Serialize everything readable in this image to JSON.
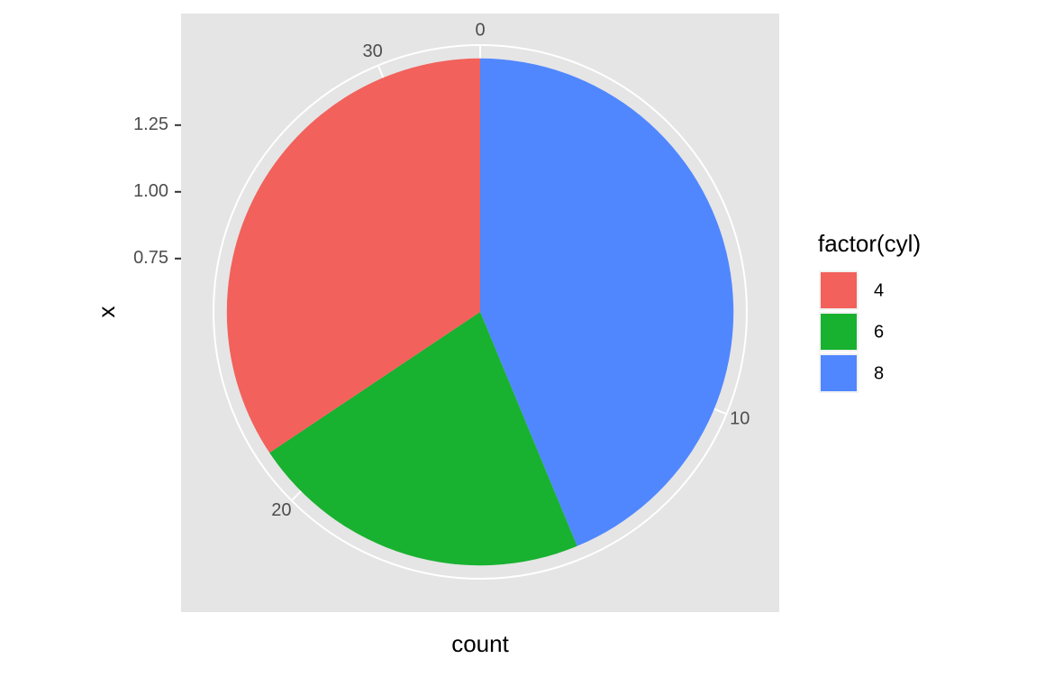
{
  "chart_data": {
    "type": "pie",
    "x_label": "count",
    "y_label": "x",
    "series": [
      {
        "name": "8",
        "color": "#5087ff",
        "values": [
          14
        ]
      },
      {
        "name": "6",
        "color": "#18b130",
        "values": [
          7
        ]
      },
      {
        "name": "4",
        "color": "#f2615b",
        "values": [
          11
        ]
      }
    ],
    "legend_title": "factor(cyl)",
    "legend_order": [
      2,
      1,
      0
    ],
    "thetalim": [
      0,
      32
    ],
    "thetaticks": [
      0,
      10,
      20,
      30
    ],
    "rlim": [
      0.55,
      1.55
    ],
    "rticks": [
      0.75,
      {
        "value": 1,
        "label": "1.00"
      },
      1.25
    ],
    "bar_extent": [
      0.5,
      1.5
    ],
    "grid": true,
    "legend_position": "right"
  }
}
